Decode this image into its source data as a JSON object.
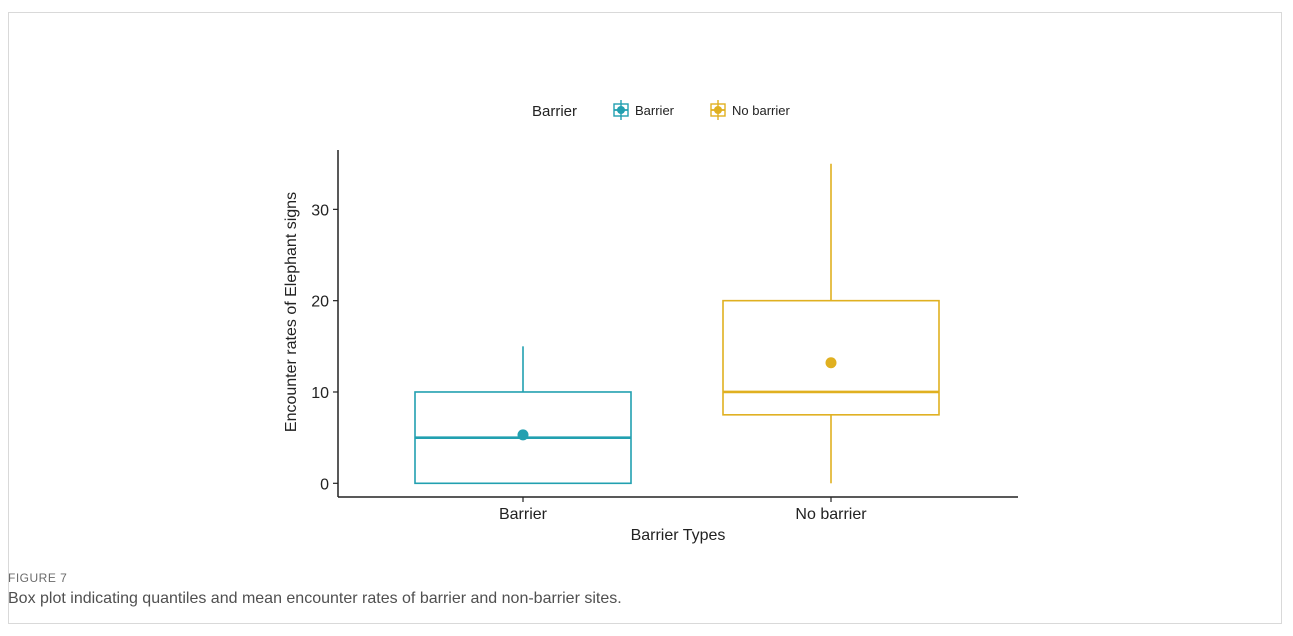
{
  "figure": {
    "label": "FIGURE 7",
    "caption": "Box plot indicating quantiles and mean encounter rates of barrier and non-barrier sites."
  },
  "chart_data": {
    "type": "box",
    "xlabel": "Barrier Types",
    "ylabel": "Encounter rates of Elephant signs",
    "ylim": [
      -1.5,
      36.5
    ],
    "yticks": [
      0,
      10,
      20,
      30
    ],
    "categories": [
      "Barrier",
      "No barrier"
    ],
    "legend": {
      "title": "Barrier",
      "placement": "top",
      "entries": [
        "Barrier",
        "No barrier"
      ]
    },
    "series": [
      {
        "name": "Barrier",
        "color": "#22a0b0",
        "min": 0,
        "q1": 0,
        "median": 5,
        "q3": 10,
        "max": 15,
        "mean": 5.3
      },
      {
        "name": "No barrier",
        "color": "#e0b020",
        "min": 0,
        "q1": 7.5,
        "median": 10,
        "q3": 20,
        "max": 35,
        "mean": 13.2
      }
    ],
    "grid": false
  }
}
